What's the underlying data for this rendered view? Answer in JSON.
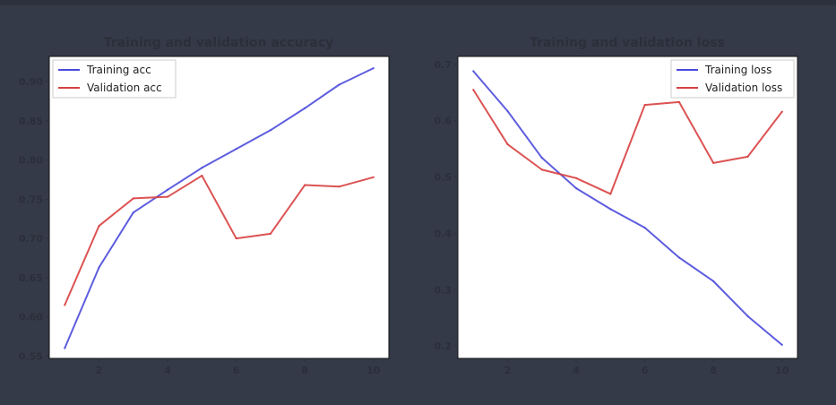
{
  "chart_data": [
    {
      "type": "line",
      "title": "Training and validation accuracy",
      "xlabel": "",
      "ylabel": "",
      "x": [
        1,
        2,
        3,
        4,
        5,
        6,
        7,
        8,
        9,
        10
      ],
      "xlim": [
        0.55,
        10.45
      ],
      "ylim": [
        0.547,
        0.932
      ],
      "xticks": [
        2,
        4,
        6,
        8,
        10
      ],
      "yticks": [
        0.55,
        0.6,
        0.65,
        0.7,
        0.75,
        0.8,
        0.85,
        0.9
      ],
      "ytick_labels": [
        "0.55",
        "0.60",
        "0.65",
        "0.70",
        "0.75",
        "0.80",
        "0.85",
        "0.90"
      ],
      "grid": false,
      "legend_position": "upper-left",
      "series": [
        {
          "name": "Training acc",
          "color": "#4b4bdc",
          "values": [
            0.56,
            0.663,
            0.733,
            0.762,
            0.79,
            0.814,
            0.838,
            0.866,
            0.896,
            0.917
          ]
        },
        {
          "name": "Validation acc",
          "color": "#d84040",
          "values": [
            0.615,
            0.716,
            0.751,
            0.753,
            0.78,
            0.7,
            0.706,
            0.768,
            0.766,
            0.778
          ]
        }
      ]
    },
    {
      "type": "line",
      "title": "Training and validation loss",
      "xlabel": "",
      "ylabel": "",
      "x": [
        1,
        2,
        3,
        4,
        5,
        6,
        7,
        8,
        9,
        10
      ],
      "xlim": [
        0.55,
        10.45
      ],
      "ylim": [
        0.178,
        0.714
      ],
      "xticks": [
        2,
        4,
        6,
        8,
        10
      ],
      "yticks": [
        0.2,
        0.3,
        0.4,
        0.5,
        0.6,
        0.7
      ],
      "ytick_labels": [
        "0.2",
        "0.3",
        "0.4",
        "0.5",
        "0.6",
        "0.7"
      ],
      "grid": false,
      "legend_position": "upper-right",
      "series": [
        {
          "name": "Training loss",
          "color": "#4b4bdc",
          "values": [
            0.688,
            0.617,
            0.534,
            0.48,
            0.443,
            0.41,
            0.357,
            0.315,
            0.253,
            0.202
          ]
        },
        {
          "name": "Validation loss",
          "color": "#d84040",
          "values": [
            0.655,
            0.558,
            0.513,
            0.498,
            0.47,
            0.628,
            0.633,
            0.525,
            0.536,
            0.616
          ]
        }
      ]
    }
  ]
}
